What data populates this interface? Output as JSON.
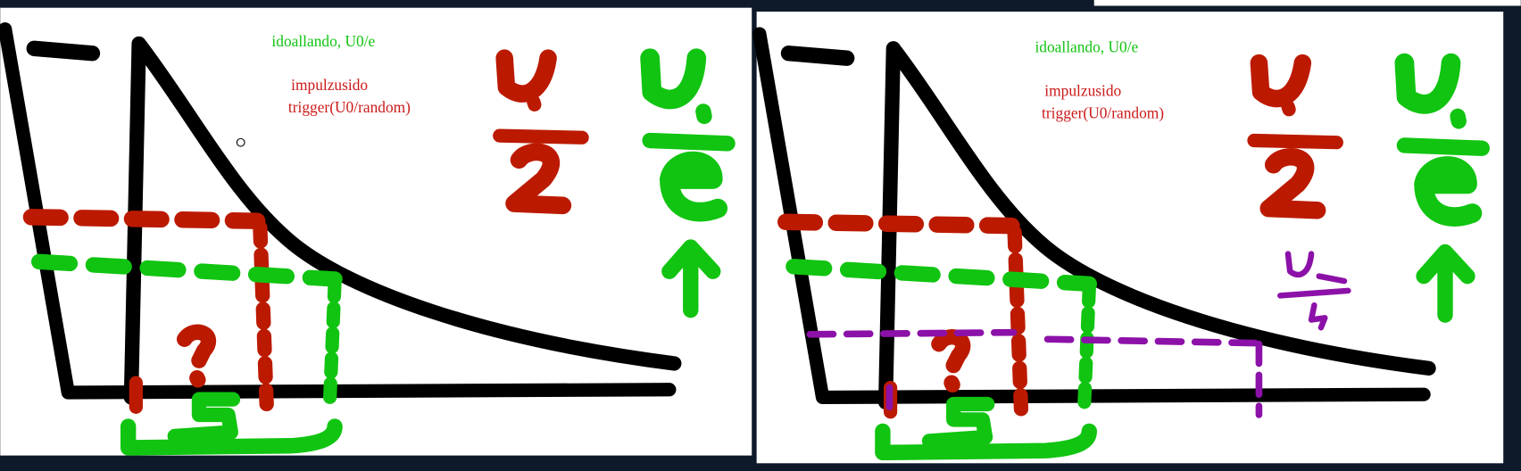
{
  "panels": [
    {
      "green_note": "idoallando, U0/e",
      "red_note": [
        "impulzusido",
        "trigger(U0/random)"
      ]
    },
    {
      "green_note": "idoallando, U0/e",
      "red_note": [
        "impulzusido",
        "trigger(U0/random)"
      ]
    }
  ]
}
